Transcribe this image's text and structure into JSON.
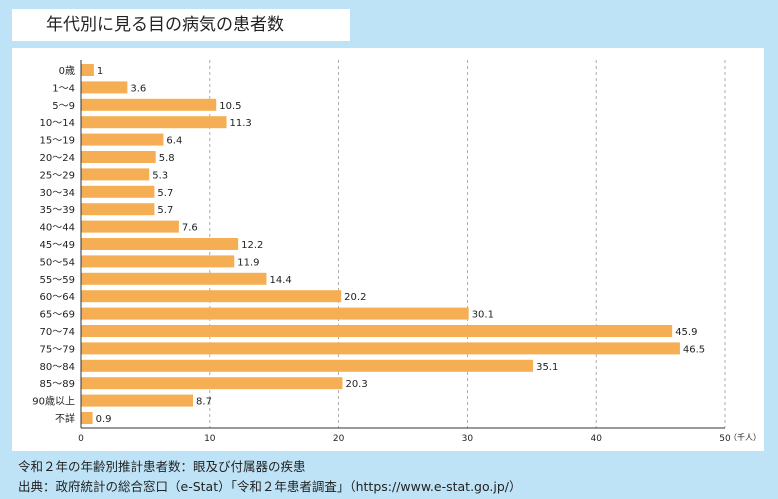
{
  "title": "年代別に見る目の病気の患者数",
  "chart_data": {
    "type": "bar",
    "orientation": "horizontal",
    "categories": [
      "0歳",
      "1～4",
      "5～9",
      "10～14",
      "15～19",
      "20～24",
      "25～29",
      "30～34",
      "35～39",
      "40～44",
      "45～49",
      "50～54",
      "55～59",
      "60～64",
      "65～69",
      "70～74",
      "75～79",
      "80～84",
      "85～89",
      "90歳以上",
      "不詳"
    ],
    "values": [
      1,
      3.6,
      10.5,
      11.3,
      6.4,
      5.8,
      5.3,
      5.7,
      5.7,
      7.6,
      12.2,
      11.9,
      14.4,
      20.2,
      30.1,
      45.9,
      46.5,
      35.1,
      20.3,
      8.7,
      0.9
    ],
    "value_labels": [
      "1",
      "3.6",
      "10.5",
      "11.3",
      "6.4",
      "5.8",
      "5.3",
      "5.7",
      "5.7",
      "7.6",
      "12.2",
      "11.9",
      "14.4",
      "20.2",
      "30.1",
      "45.9",
      "46.5",
      "35.1",
      "20.3",
      "8.7",
      "0.9"
    ],
    "xticks": [
      "0",
      "10",
      "20",
      "30",
      "40",
      "50"
    ],
    "xlim": [
      0,
      50
    ],
    "xunit": "（千人）",
    "bar_color": "#f6ae54",
    "grid": "vertical dashed"
  },
  "footnotes": {
    "line1": "令和２年の年齢別推計患者数：眼及び付属器の疾患",
    "line2": "出典：政府統計の総合窓口（e-Stat）「令和２年患者調査」（https://www.e-stat.go.jp/）"
  }
}
